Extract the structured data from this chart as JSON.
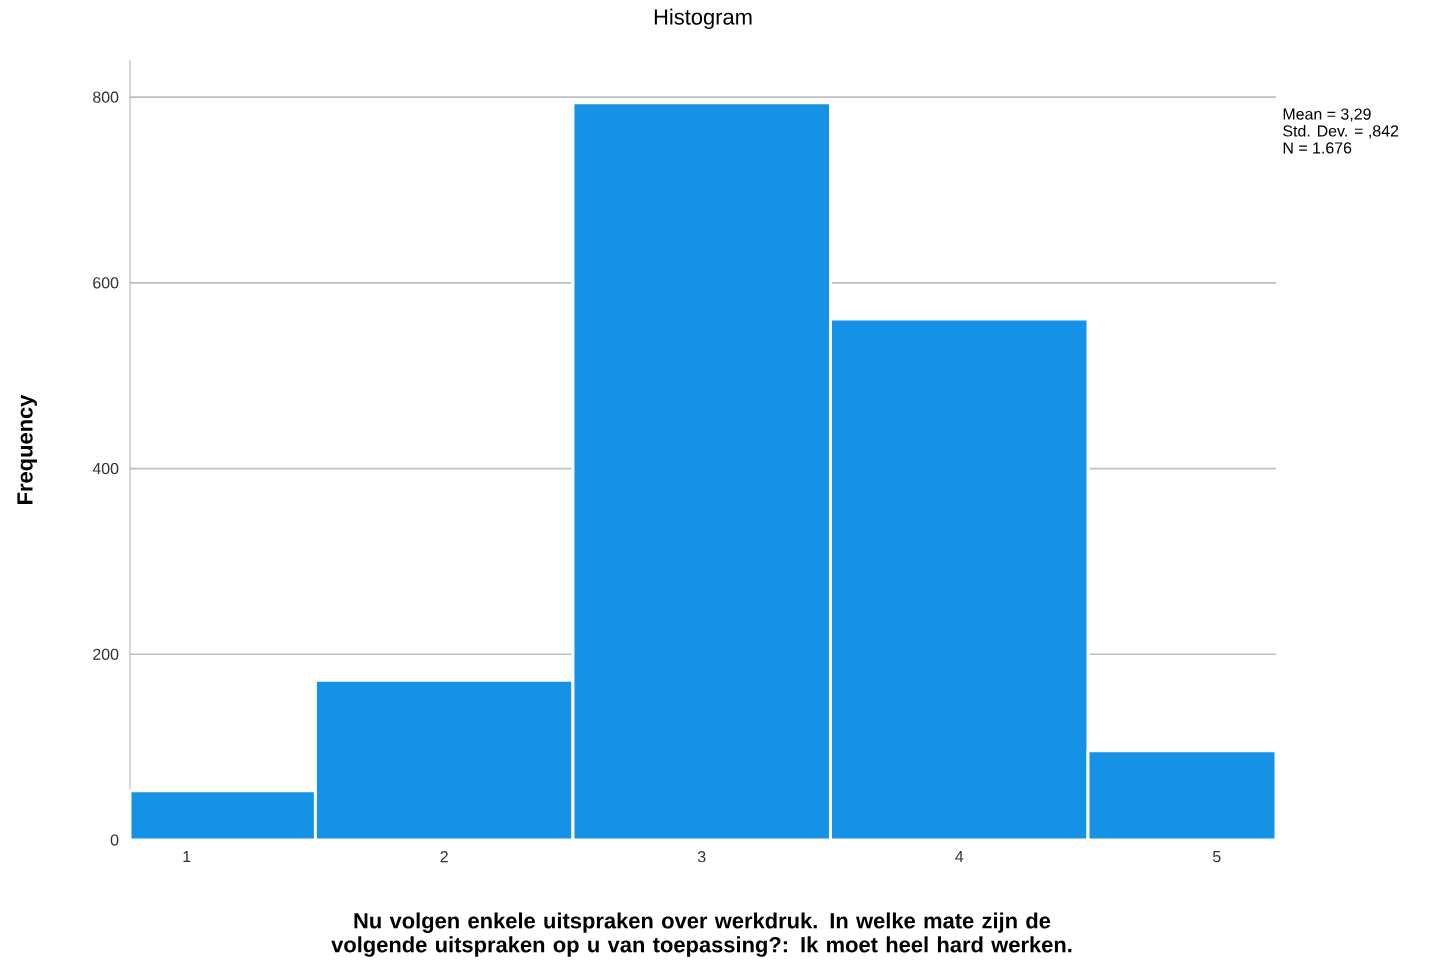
{
  "chart_data": {
    "type": "histogram",
    "title": "Histogram",
    "xlabel": "Nu volgen enkele uitspraken over werkdruk. In welke mate zijn de volgende uitspraken op u van toepassing?: Ik moet heel hard werken.",
    "ylabel": "Frequency",
    "bins": [
      0.78,
      1.5,
      2.5,
      3.5,
      4.5,
      5.23
    ],
    "values": [
      53,
      172,
      794,
      561,
      96
    ],
    "color": "#1591e5",
    "xlim": [
      0.78,
      5.23
    ],
    "xticks": [
      1,
      2,
      3,
      4,
      5
    ],
    "ylim": [
      0,
      840
    ],
    "yticks": [
      0,
      200,
      400,
      600,
      800
    ],
    "grid": "y",
    "annotations": [
      "Mean = 3,29",
      "Std. Dev. = ,842",
      "N = 1.676"
    ]
  }
}
